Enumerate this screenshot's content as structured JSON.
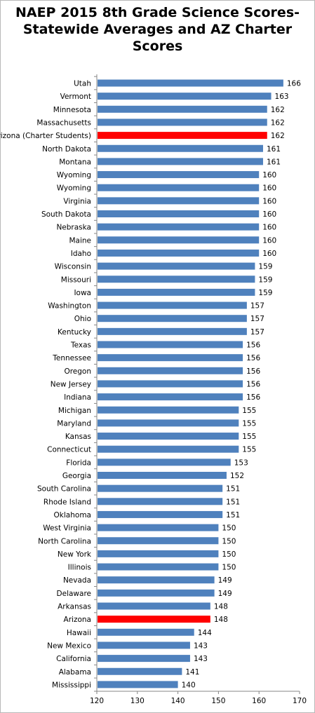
{
  "chart_data": {
    "type": "bar",
    "orientation": "horizontal",
    "title": "NAEP 2015 8th Grade Science Scores-\nStatewide Averages and AZ Charter\nScores",
    "xlabel": "",
    "ylabel": "",
    "xlim": [
      120,
      170
    ],
    "xticks": [
      120,
      130,
      140,
      150,
      160,
      170
    ],
    "grid": false,
    "legend": "none",
    "data_labels": true,
    "colors": {
      "default": "#4f81bd",
      "highlight": "#ff0000"
    },
    "categories": [
      "Utah",
      "Vermont",
      "Minnesota",
      "Massachusetts",
      "Arizona (Charter Students)",
      "North Dakota",
      "Montana",
      "Wyoming",
      "Wyoming",
      "Virginia",
      "South Dakota",
      "Nebraska",
      "Maine",
      "Idaho",
      "Wisconsin",
      "Missouri",
      "Iowa",
      "Washington",
      "Ohio",
      "Kentucky",
      "Texas",
      "Tennessee",
      "Oregon",
      "New Jersey",
      "Indiana",
      "Michigan",
      "Maryland",
      "Kansas",
      "Connecticut",
      "Florida",
      "Georgia",
      "South Carolina",
      "Rhode Island",
      "Oklahoma",
      "West Virginia",
      "North Carolina",
      "New York",
      "Illinois",
      "Nevada",
      "Delaware",
      "Arkansas",
      "Arizona",
      "Hawaii",
      "New Mexico",
      "California",
      "Alabama",
      "Mississippi"
    ],
    "values": [
      166,
      163,
      162,
      162,
      162,
      161,
      161,
      160,
      160,
      160,
      160,
      160,
      160,
      160,
      159,
      159,
      159,
      157,
      157,
      157,
      156,
      156,
      156,
      156,
      156,
      155,
      155,
      155,
      155,
      153,
      152,
      151,
      151,
      151,
      150,
      150,
      150,
      150,
      149,
      149,
      148,
      148,
      144,
      143,
      143,
      141,
      140
    ],
    "highlighted": [
      "Arizona (Charter Students)",
      "Arizona"
    ]
  }
}
